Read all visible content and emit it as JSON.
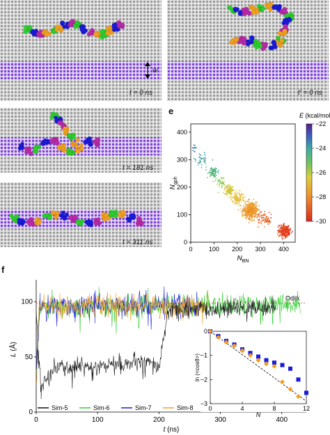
{
  "panels": {
    "a": {
      "letter": "a",
      "time_label": "t = 0 ns",
      "width_label": "w"
    },
    "b": {
      "letter": "b",
      "time_label": "t' = 0 ns"
    },
    "c": {
      "letter": "c",
      "time_label": "t = 181 ns"
    },
    "d": {
      "letter": "d",
      "time_label": "t = 311 ns"
    },
    "e": {
      "letter": "e"
    },
    "f": {
      "letter": "f"
    }
  },
  "colors": {
    "gray": "#b8b8b8",
    "purple": "#7a3fd0",
    "green": "#2ecc2e",
    "blue": "#1a1ad8",
    "magenta": "#b72aa8",
    "orange": "#f0a020",
    "black": "#111111"
  },
  "chart_data": [
    {
      "type": "scatter",
      "panel": "e",
      "xlabel": "N_BN",
      "ylabel": "N_gph",
      "xlim": [
        0,
        450
      ],
      "ylim": [
        0,
        430
      ],
      "xticks": [
        0,
        100,
        200,
        300,
        400
      ],
      "yticks": [
        0,
        100,
        200,
        300,
        400
      ],
      "colorbar": {
        "title": "E (kcal/mol)",
        "min": -30,
        "max": -22,
        "ticks": [
          -22,
          -24,
          -26,
          -28,
          -30
        ]
      },
      "clusters": [
        {
          "x": 15,
          "y": 340,
          "sx": 4,
          "sy": 6,
          "n": 12,
          "e": -23.5
        },
        {
          "x": 45,
          "y": 305,
          "sx": 15,
          "sy": 16,
          "n": 40,
          "e": -24
        },
        {
          "x": 95,
          "y": 255,
          "sx": 10,
          "sy": 8,
          "n": 80,
          "e": -24.5
        },
        {
          "x": 125,
          "y": 220,
          "sx": 12,
          "sy": 10,
          "n": 40,
          "e": -25.5
        },
        {
          "x": 165,
          "y": 190,
          "sx": 10,
          "sy": 9,
          "n": 120,
          "e": -26.5
        },
        {
          "x": 200,
          "y": 160,
          "sx": 14,
          "sy": 12,
          "n": 100,
          "e": -27
        },
        {
          "x": 258,
          "y": 115,
          "sx": 14,
          "sy": 14,
          "n": 480,
          "e": -27.8
        },
        {
          "x": 320,
          "y": 85,
          "sx": 18,
          "sy": 12,
          "n": 70,
          "e": -28.8
        },
        {
          "x": 405,
          "y": 40,
          "sx": 12,
          "sy": 10,
          "n": 300,
          "e": -29.5
        }
      ]
    },
    {
      "type": "line",
      "panel": "f",
      "xlabel": "t (ns)",
      "ylabel": "L (Å)",
      "xlim": [
        0,
        440
      ],
      "ylim": [
        0,
        120
      ],
      "xticks": [
        0,
        100,
        200,
        300,
        400
      ],
      "yticks": [
        0,
        50,
        100
      ],
      "reference_line": {
        "label": "Odijk",
        "value": 99
      },
      "series": [
        {
          "name": "Sim-5",
          "color": "#111111",
          "segments": [
            [
              0,
              92,
              8,
              18
            ],
            [
              8,
              18,
              10,
              25
            ],
            [
              10,
              25,
              30,
              40
            ],
            [
              30,
              40,
              180,
              45
            ],
            [
              180,
              45,
              200,
              40
            ],
            [
              200,
              40,
              215,
              92
            ],
            [
              215,
              92,
              390,
              95
            ]
          ],
          "noise": 7
        },
        {
          "name": "Sim-6",
          "color": "#2ecc2e",
          "segments": [
            [
              0,
              40,
              5,
              95
            ],
            [
              5,
              95,
              430,
              98
            ]
          ],
          "noise": 9
        },
        {
          "name": "Sim-7",
          "color": "#1a1ad8",
          "segments": [
            [
              0,
              30,
              6,
              96
            ],
            [
              6,
              96,
              270,
              98
            ]
          ],
          "noise": 9
        },
        {
          "name": "Sim-8",
          "color": "#f0a020",
          "segments": [
            [
              0,
              20,
              5,
              96
            ],
            [
              5,
              96,
              280,
              97
            ]
          ],
          "noise": 9
        }
      ]
    },
    {
      "type": "scatter",
      "panel": "f-inset",
      "xlabel": "N",
      "ylabel": "ln (<cosθ>)",
      "xlim": [
        0,
        12
      ],
      "ylim": [
        -3,
        0
      ],
      "xticks": [
        0,
        4,
        8,
        12
      ],
      "yticks": [
        0,
        -1,
        -2,
        -3
      ],
      "fit_line": [
        [
          0,
          0
        ],
        [
          12,
          -2.9
        ]
      ],
      "series": [
        {
          "name": "blue",
          "color": "#1a1ad8",
          "marker": "square",
          "x": [
            0,
            1,
            2,
            3,
            4,
            5,
            6,
            7,
            8,
            9,
            10,
            11,
            12
          ],
          "y": [
            0,
            -0.2,
            -0.4,
            -0.55,
            -0.75,
            -0.9,
            -1.05,
            -1.2,
            -1.3,
            -1.4,
            -1.55,
            -2.0,
            -2.55
          ]
        },
        {
          "name": "orange",
          "color": "#f0a020",
          "marker": "diamond",
          "x": [
            0,
            1,
            2,
            3,
            4,
            5,
            6,
            7,
            8,
            9,
            10,
            11
          ],
          "y": [
            0,
            -0.25,
            -0.45,
            -0.6,
            -0.8,
            -1.0,
            -1.2,
            -1.35,
            -1.45,
            -2.1,
            -2.4,
            -2.7
          ]
        }
      ]
    }
  ]
}
